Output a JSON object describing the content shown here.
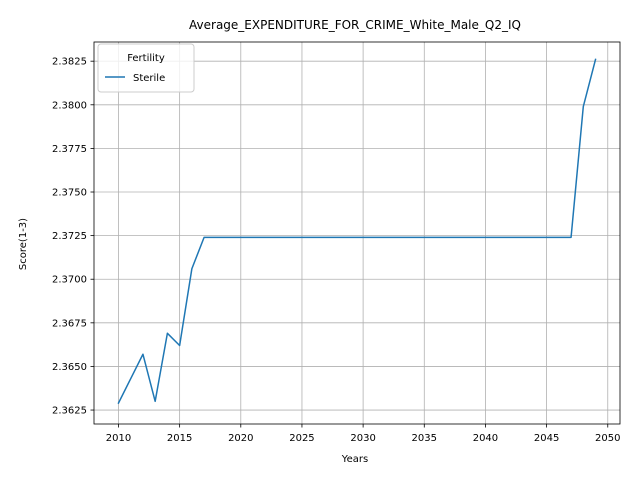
{
  "chart_data": {
    "type": "line",
    "title": "Average_EXPENDITURE_FOR_CRIME_White_Male_Q2_IQ",
    "xlabel": "Years",
    "ylabel": "Score(1-3)",
    "xlim": [
      2008,
      2051
    ],
    "ylim": [
      2.3617,
      2.3836
    ],
    "xticks": [
      2010,
      2015,
      2020,
      2025,
      2030,
      2035,
      2040,
      2045,
      2050
    ],
    "yticks": [
      2.3625,
      2.365,
      2.3675,
      2.37,
      2.3725,
      2.375,
      2.3775,
      2.38,
      2.3825
    ],
    "ytick_labels": [
      "2.3625",
      "2.3650",
      "2.3675",
      "2.3700",
      "2.3725",
      "2.3750",
      "2.3775",
      "2.3800",
      "2.3825"
    ],
    "grid": true,
    "legend": {
      "title": "Fertility",
      "position": "top-left"
    },
    "series": [
      {
        "name": "Sterile",
        "color": "#1f77b4",
        "x": [
          2010,
          2011,
          2012,
          2013,
          2014,
          2015,
          2016,
          2017,
          2018,
          2019,
          2020,
          2021,
          2022,
          2023,
          2024,
          2025,
          2026,
          2027,
          2028,
          2029,
          2030,
          2031,
          2032,
          2033,
          2034,
          2035,
          2036,
          2037,
          2038,
          2039,
          2040,
          2041,
          2042,
          2043,
          2044,
          2045,
          2046,
          2047,
          2048,
          2049
        ],
        "y": [
          2.3629,
          2.3643,
          2.3657,
          2.363,
          2.3669,
          2.3662,
          2.3706,
          2.3724,
          2.3724,
          2.3724,
          2.3724,
          2.3724,
          2.3724,
          2.3724,
          2.3724,
          2.3724,
          2.3724,
          2.3724,
          2.3724,
          2.3724,
          2.3724,
          2.3724,
          2.3724,
          2.3724,
          2.3724,
          2.3724,
          2.3724,
          2.3724,
          2.3724,
          2.3724,
          2.3724,
          2.3724,
          2.3724,
          2.3724,
          2.3724,
          2.3724,
          2.3724,
          2.3724,
          2.3799,
          2.3826
        ]
      }
    ]
  }
}
